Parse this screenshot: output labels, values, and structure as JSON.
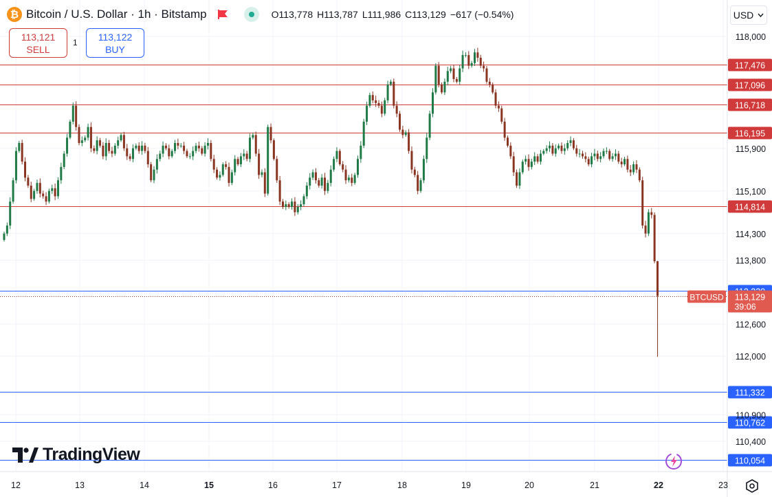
{
  "header": {
    "symbol_title": "Bitcoin / U.S. Dollar · 1h · Bitstamp",
    "open_label": "O",
    "open": "113,778",
    "high_label": "H",
    "high": "113,787",
    "low_label": "L",
    "low": "111,986",
    "close_label": "C",
    "close": "113,129",
    "change": "−617 (−0.54%)"
  },
  "trade": {
    "sell_price": "113,121",
    "sell_label": "SELL",
    "spread": "1",
    "buy_price": "113,122",
    "buy_label": "BUY"
  },
  "currency": "USD",
  "brand": "TradingView",
  "colors": {
    "up": "#26a69a",
    "down": "#ef5350",
    "resistance": "#d13a3a",
    "support": "#2962ff",
    "candle_up": "#1f7a46",
    "candle_down": "#8a3522"
  },
  "chart_data": {
    "type": "candlestick",
    "symbol": "BTCUSD",
    "interval": "1h",
    "ylim": [
      109950,
      118350
    ],
    "y_ticks": [
      "118,000",
      "115,900",
      "115,100",
      "114,300",
      "113,800",
      "112,600",
      "112,000",
      "110,900",
      "110,400"
    ],
    "y_tick_values": [
      118000,
      115900,
      115100,
      114300,
      113800,
      112600,
      112000,
      110900,
      110400
    ],
    "x_ticks": [
      "12",
      "13",
      "14",
      "15",
      "16",
      "17",
      "18",
      "19",
      "20",
      "21",
      "22",
      "23"
    ],
    "x_tick_bold": [
      "15",
      "22"
    ],
    "resistance_levels": [
      {
        "value": 117476,
        "label": "117,476"
      },
      {
        "value": 117096,
        "label": "117,096"
      },
      {
        "value": 116718,
        "label": "116,718"
      },
      {
        "value": 116195,
        "label": "116,195"
      },
      {
        "value": 114814,
        "label": "114,814"
      }
    ],
    "support_levels": [
      {
        "value": 113220,
        "label": "113,220"
      },
      {
        "value": 111332,
        "label": "111,332"
      },
      {
        "value": 110762,
        "label": "110,762"
      },
      {
        "value": 110054,
        "label": "110,054"
      }
    ],
    "last_price": {
      "value": 113129,
      "label": "113,129",
      "countdown": "39:06",
      "tag": "BTCUSD"
    },
    "closes": [
      114300,
      114450,
      114900,
      115300,
      115850,
      116000,
      115650,
      115350,
      115200,
      114950,
      115100,
      115250,
      115050,
      115000,
      114900,
      115100,
      115150,
      115000,
      115300,
      115550,
      115800,
      116100,
      116400,
      116700,
      116300,
      116000,
      116050,
      116100,
      116300,
      115900,
      115850,
      116050,
      115950,
      115750,
      116000,
      115850,
      115800,
      115950,
      116050,
      116150,
      115900,
      115750,
      115700,
      115900,
      115950,
      115850,
      115950,
      115850,
      115600,
      115300,
      115500,
      115700,
      115800,
      115950,
      115900,
      115750,
      115850,
      116000,
      115950,
      115950,
      115850,
      115750,
      115750,
      115850,
      115950,
      115900,
      115800,
      115950,
      116000,
      115700,
      115500,
      115350,
      115400,
      115600,
      115550,
      115250,
      115450,
      115700,
      115600,
      115750,
      115800,
      115700,
      116100,
      116150,
      115800,
      115400,
      115450,
      115050,
      116300,
      116050,
      115700,
      115300,
      114900,
      114800,
      114850,
      114800,
      114900,
      114700,
      114800,
      114850,
      115000,
      115200,
      115350,
      115450,
      115300,
      115200,
      115350,
      115100,
      115250,
      115500,
      115700,
      115850,
      115600,
      115500,
      115300,
      115350,
      115250,
      115400,
      115700,
      115950,
      116400,
      116700,
      116900,
      116800,
      116750,
      116700,
      116550,
      116800,
      117100,
      117150,
      116700,
      116550,
      116250,
      116150,
      116200,
      115850,
      115500,
      115400,
      115100,
      115300,
      115700,
      116100,
      116550,
      116950,
      117450,
      117100,
      116950,
      117150,
      117350,
      117400,
      117200,
      117150,
      117400,
      117650,
      117650,
      117450,
      117500,
      117700,
      117600,
      117450,
      117400,
      117150,
      117100,
      116950,
      116700,
      116650,
      116400,
      116100,
      115950,
      115750,
      115450,
      115200,
      115450,
      115650,
      115700,
      115550,
      115650,
      115750,
      115650,
      115800,
      115850,
      115900,
      115950,
      115800,
      115900,
      115950,
      115850,
      115900,
      116000,
      116050,
      115900,
      115800,
      115800,
      115750,
      115700,
      115600,
      115750,
      115800,
      115700,
      115750,
      115850,
      115850,
      115700,
      115750,
      115800,
      115650,
      115600,
      115700,
      115500,
      115450,
      115600,
      115500,
      115300,
      114450,
      114300,
      114700,
      114650,
      113780,
      113129
    ]
  }
}
